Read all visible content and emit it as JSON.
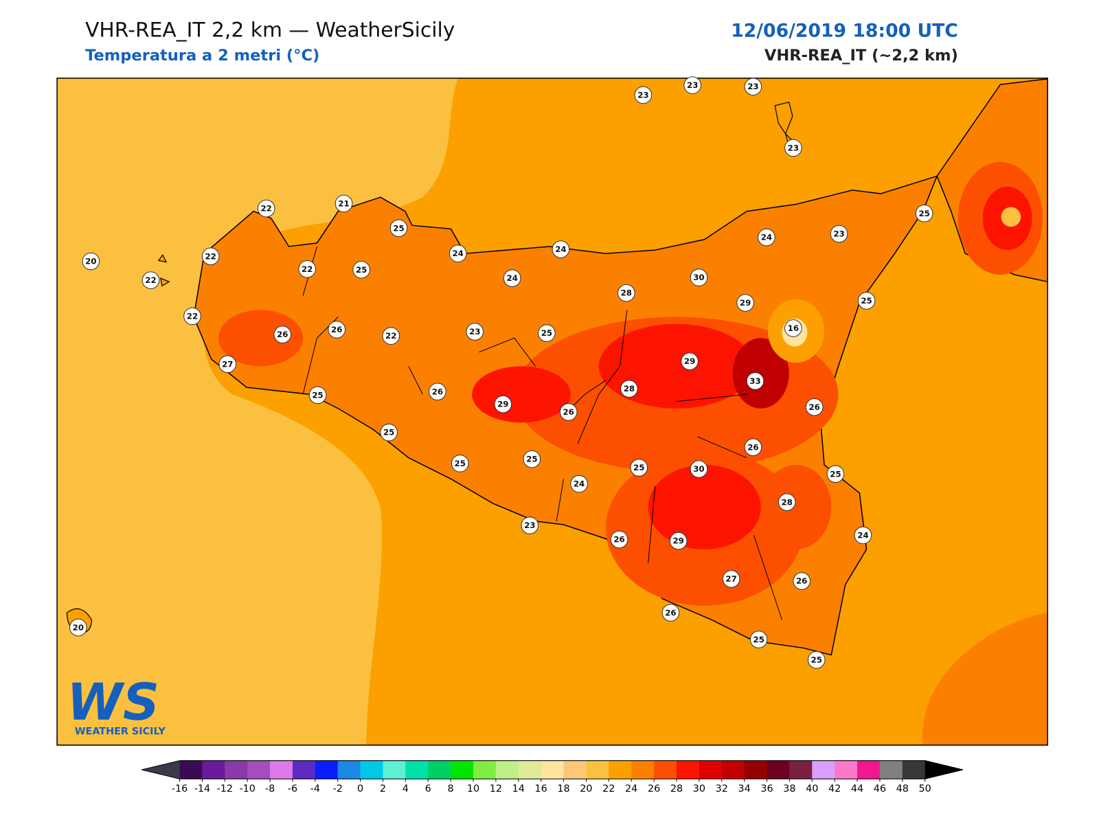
{
  "header": {
    "title": "VHR-REA_IT 2,2 km — WeatherSicily",
    "subtitle": "Temperatura a 2 metri (°C)",
    "datetime": "12/06/2019 18:00 UTC",
    "model": "VHR-REA_IT (~2,2 km)"
  },
  "stations": [
    23,
    23,
    23,
    23,
    22,
    21,
    25,
    20,
    22,
    22,
    22,
    25,
    24,
    24,
    24,
    24,
    23,
    25,
    30,
    28,
    29,
    25,
    22,
    26,
    26,
    22,
    23,
    25,
    16,
    29,
    27,
    33,
    28,
    25,
    26,
    29,
    26,
    26,
    25,
    26,
    25,
    25,
    25,
    30,
    25,
    24,
    28,
    23,
    26,
    29,
    24,
    27,
    26,
    26,
    25,
    25,
    20
  ],
  "colorbar": {
    "ticks": [
      -16,
      -14,
      -12,
      -10,
      -8,
      -6,
      -4,
      -2,
      0,
      2,
      4,
      6,
      8,
      10,
      12,
      14,
      16,
      18,
      20,
      22,
      24,
      26,
      28,
      30,
      32,
      34,
      36,
      38,
      40,
      42,
      44,
      46,
      48,
      50
    ],
    "colors": [
      "#3b0a55",
      "#6a1a9a",
      "#8a3aa8",
      "#a64dbf",
      "#e07ae8",
      "#5c2bc4",
      "#0a1eff",
      "#1e88e5",
      "#00c8e6",
      "#5ef0d0",
      "#00e0a8",
      "#00d064",
      "#00e600",
      "#80ee40",
      "#c0ee88",
      "#e0ea9a",
      "#ffe4a0",
      "#fcc878",
      "#fcc040",
      "#fca000",
      "#fc8000",
      "#fc5000",
      "#fc1400",
      "#e00000",
      "#c00000",
      "#960000",
      "#6e0020",
      "#7a2040",
      "#d8a0fc",
      "#fc78c8",
      "#f01890",
      "#808080",
      "#383838"
    ],
    "under_color": "#3a3a4a",
    "over_color": "#000000"
  },
  "logo": {
    "mark": "WS",
    "name": "WEATHER SICILY"
  }
}
